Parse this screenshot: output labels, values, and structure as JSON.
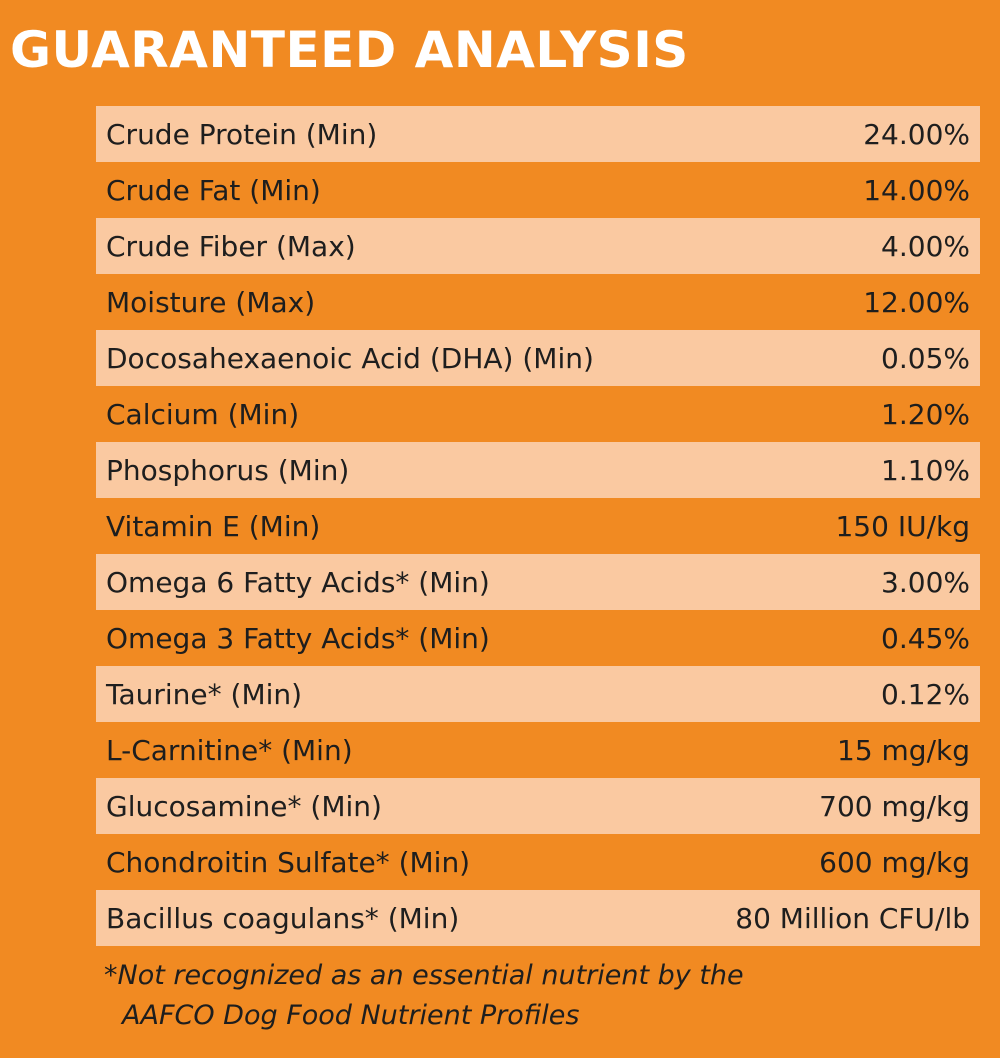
{
  "title": "GUARANTEED ANALYSIS",
  "rows": [
    {
      "label": "Crude Protein (Min)",
      "value": "24.00%"
    },
    {
      "label": "Crude Fat (Min)",
      "value": "14.00%"
    },
    {
      "label": "Crude Fiber (Max)",
      "value": "4.00%"
    },
    {
      "label": "Moisture (Max)",
      "value": "12.00%"
    },
    {
      "label": "Docosahexaenoic Acid (DHA) (Min)",
      "value": "0.05%"
    },
    {
      "label": "Calcium (Min)",
      "value": "1.20%"
    },
    {
      "label": "Phosphorus (Min)",
      "value": "1.10%"
    },
    {
      "label": "Vitamin E (Min)",
      "value": "150 IU/kg"
    },
    {
      "label": "Omega 6 Fatty Acids* (Min)",
      "value": "3.00%"
    },
    {
      "label": "Omega 3 Fatty Acids* (Min)",
      "value": "0.45%"
    },
    {
      "label": "Taurine* (Min)",
      "value": "0.12%"
    },
    {
      "label": "L-Carnitine* (Min)",
      "value": "15 mg/kg"
    },
    {
      "label": "Glucosamine* (Min)",
      "value": "700 mg/kg"
    },
    {
      "label": "Chondroitin Sulfate* (Min)",
      "value": "600 mg/kg"
    },
    {
      "label": "Bacillus coagulans* (Min)",
      "value": "80 Million CFU/lb"
    }
  ],
  "footnote": {
    "line1": "*Not recognized as an essential nutrient by the",
    "line2": "AAFCO Dog Food Nutrient Profiles"
  },
  "colors": {
    "background": "#f18a22",
    "row_light": "#fac9a1",
    "title": "#ffffff",
    "text": "#1e1e1e"
  }
}
